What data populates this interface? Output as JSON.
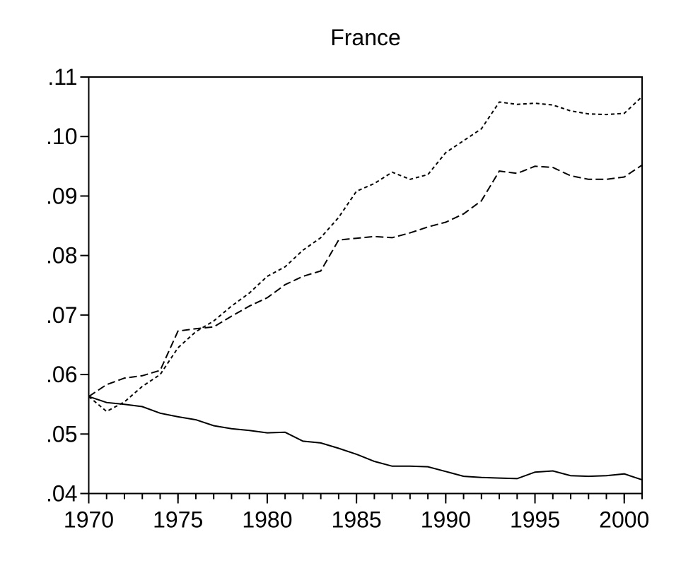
{
  "chart_data": {
    "type": "line",
    "title": "France",
    "background": "#ffffff",
    "line_color": "#000000",
    "grid": false,
    "legend": "none",
    "xlim": [
      1970,
      2001
    ],
    "ylim": [
      0.04,
      0.11
    ],
    "x_minor_tick_every": 1,
    "x_major_ticks": [
      {
        "label": "1970",
        "value": 1970
      },
      {
        "label": "1975",
        "value": 1975
      },
      {
        "label": "1980",
        "value": 1980
      },
      {
        "label": "1985",
        "value": 1985
      },
      {
        "label": "1990",
        "value": 1990
      },
      {
        "label": "1995",
        "value": 1995
      },
      {
        "label": "2000",
        "value": 2000
      }
    ],
    "y_ticks": [
      {
        "label": ".04",
        "value": 0.04
      },
      {
        "label": ".05",
        "value": 0.05
      },
      {
        "label": ".06",
        "value": 0.06
      },
      {
        "label": ".07",
        "value": 0.07
      },
      {
        "label": ".08",
        "value": 0.08
      },
      {
        "label": ".09",
        "value": 0.09
      },
      {
        "label": ".10",
        "value": 0.1
      },
      {
        "label": ".11",
        "value": 0.11
      }
    ],
    "x": [
      1970,
      1971,
      1972,
      1973,
      1974,
      1975,
      1976,
      1977,
      1978,
      1979,
      1980,
      1981,
      1982,
      1983,
      1984,
      1985,
      1986,
      1987,
      1988,
      1989,
      1990,
      1991,
      1992,
      1993,
      1994,
      1995,
      1996,
      1997,
      1998,
      1999,
      2000,
      2001
    ],
    "series": [
      {
        "name": "solid-line",
        "style": "solid",
        "values": [
          0.0563,
          0.0553,
          0.055,
          0.0546,
          0.0535,
          0.0529,
          0.0524,
          0.0514,
          0.0509,
          0.0506,
          0.0502,
          0.0503,
          0.0488,
          0.0485,
          0.0476,
          0.0466,
          0.0454,
          0.0446,
          0.0446,
          0.0445,
          0.0437,
          0.0429,
          0.0427,
          0.0426,
          0.0425,
          0.0436,
          0.0438,
          0.043,
          0.0429,
          0.043,
          0.0433,
          0.0423
        ]
      },
      {
        "name": "long-dash-line",
        "style": "long-dash",
        "values": [
          0.0563,
          0.0583,
          0.0594,
          0.0598,
          0.0607,
          0.0673,
          0.0677,
          0.068,
          0.0698,
          0.0715,
          0.0729,
          0.0751,
          0.0765,
          0.0774,
          0.0826,
          0.0829,
          0.0832,
          0.083,
          0.0838,
          0.0848,
          0.0856,
          0.087,
          0.0892,
          0.0942,
          0.0938,
          0.095,
          0.0948,
          0.0934,
          0.0928,
          0.0928,
          0.0932,
          0.0952
        ]
      },
      {
        "name": "short-dash-line",
        "style": "short-dash",
        "values": [
          0.0563,
          0.0538,
          0.0554,
          0.058,
          0.06,
          0.0645,
          0.0672,
          0.069,
          0.0715,
          0.0737,
          0.0765,
          0.0781,
          0.0809,
          0.083,
          0.0864,
          0.0908,
          0.0921,
          0.094,
          0.0928,
          0.0936,
          0.0973,
          0.0993,
          0.1013,
          0.1058,
          0.1054,
          0.1056,
          0.1053,
          0.1043,
          0.1038,
          0.1037,
          0.1039,
          0.1067
        ]
      }
    ]
  }
}
